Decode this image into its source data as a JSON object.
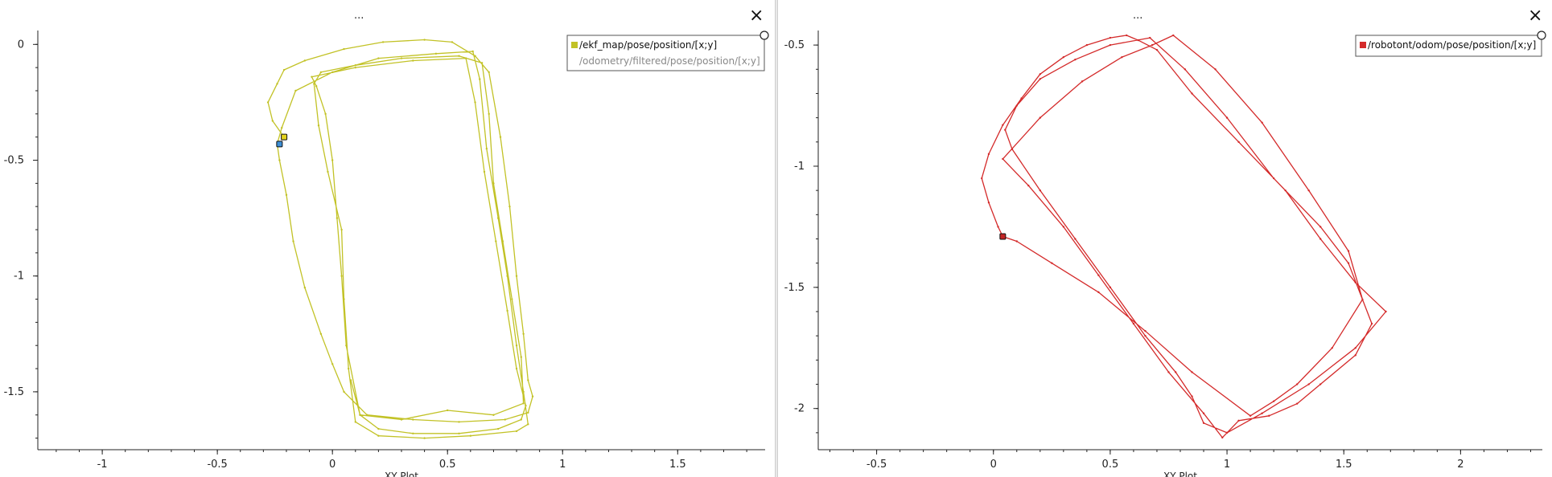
{
  "panels": [
    {
      "title": "...",
      "close_label": "×",
      "chart_data": {
        "type": "line",
        "title": "",
        "xlabel": "XY Plot",
        "ylabel": "",
        "xlim": [
          -1.28,
          1.88
        ],
        "ylim": [
          -1.75,
          0.06
        ],
        "xticks": [
          -1,
          -0.5,
          0,
          0.5,
          1,
          1.5
        ],
        "xtick_labels": [
          "-1",
          "-0.5",
          "0",
          "0.5",
          "1",
          "1.5"
        ],
        "yticks": [
          0,
          -0.5,
          -1,
          -1.5
        ],
        "ytick_labels": [
          "0",
          "-0.5",
          "-1",
          "-1.5"
        ],
        "grid": false,
        "legend_position": "top-right",
        "series": [
          {
            "name": "/ekf_map/pose/position/[x;y]",
            "color": "#c2c226",
            "visible": true,
            "marker": {
              "x": -0.21,
              "y": -0.4,
              "color": "#e3d21f"
            },
            "x": [
              -0.21,
              -0.26,
              -0.28,
              -0.24,
              -0.21,
              -0.12,
              0.05,
              0.22,
              0.4,
              0.52,
              0.62,
              0.68,
              0.73,
              0.77,
              0.8,
              0.83,
              0.85,
              0.87,
              0.85,
              0.75,
              0.55,
              0.35,
              0.15,
              0.05,
              0.0,
              -0.05,
              -0.12,
              -0.17,
              -0.2,
              -0.23,
              -0.24,
              -0.22,
              -0.16,
              0.0,
              0.2,
              0.45,
              0.61,
              0.64,
              0.67,
              0.72,
              0.76,
              0.8,
              0.83,
              0.85,
              0.8,
              0.6,
              0.4,
              0.2,
              0.1,
              0.07,
              0.05,
              0.04,
              -0.02,
              -0.06,
              -0.08,
              -0.05,
              0.1,
              0.3,
              0.55,
              0.65,
              0.68,
              0.7,
              0.74,
              0.78,
              0.82,
              0.83,
              0.7,
              0.5,
              0.3,
              0.12,
              0.06,
              0.04,
              0.02,
              0.0,
              -0.03,
              -0.07,
              -0.09,
              0.1,
              0.35,
              0.58,
              0.62,
              0.66,
              0.71,
              0.76,
              0.8,
              0.84,
              0.82,
              0.72,
              0.55,
              0.35,
              0.2,
              0.12,
              0.08
            ],
            "y": [
              -0.4,
              -0.33,
              -0.25,
              -0.17,
              -0.11,
              -0.07,
              -0.02,
              0.01,
              0.02,
              0.01,
              -0.05,
              -0.12,
              -0.4,
              -0.7,
              -1.0,
              -1.25,
              -1.45,
              -1.52,
              -1.59,
              -1.62,
              -1.63,
              -1.62,
              -1.6,
              -1.5,
              -1.38,
              -1.25,
              -1.05,
              -0.85,
              -0.65,
              -0.5,
              -0.43,
              -0.36,
              -0.2,
              -0.12,
              -0.06,
              -0.04,
              -0.03,
              -0.15,
              -0.45,
              -0.75,
              -1.0,
              -1.3,
              -1.5,
              -1.64,
              -1.67,
              -1.69,
              -1.7,
              -1.69,
              -1.63,
              -1.4,
              -1.1,
              -0.8,
              -0.55,
              -0.35,
              -0.17,
              -0.12,
              -0.09,
              -0.06,
              -0.05,
              -0.08,
              -0.3,
              -0.6,
              -0.85,
              -1.1,
              -1.35,
              -1.55,
              -1.6,
              -1.58,
              -1.62,
              -1.6,
              -1.3,
              -1.0,
              -0.75,
              -0.5,
              -0.3,
              -0.18,
              -0.14,
              -0.1,
              -0.07,
              -0.06,
              -0.25,
              -0.55,
              -0.85,
              -1.15,
              -1.4,
              -1.56,
              -1.62,
              -1.66,
              -1.68,
              -1.68,
              -1.66,
              -1.6,
              -1.45
            ]
          },
          {
            "name": "/odometry/filtered/pose/position/[x;y]",
            "color": "#4a90d9",
            "visible": false,
            "marker": {
              "x": -0.23,
              "y": -0.43,
              "color": "#3d8fd6"
            },
            "x": [],
            "y": []
          }
        ]
      }
    },
    {
      "title": "...",
      "close_label": "×",
      "chart_data": {
        "type": "line",
        "title": "",
        "xlabel": "XY Plot",
        "ylabel": "",
        "xlim": [
          -0.75,
          2.35
        ],
        "ylim": [
          -2.17,
          -0.44
        ],
        "xticks": [
          -0.5,
          0,
          0.5,
          1,
          1.5,
          2
        ],
        "xtick_labels": [
          "-0.5",
          "0",
          "0.5",
          "1",
          "1.5",
          "2"
        ],
        "yticks": [
          -0.5,
          -1,
          -1.5,
          -2
        ],
        "ytick_labels": [
          "-0.5",
          "-1",
          "-1.5",
          "-2"
        ],
        "grid": false,
        "legend_position": "top-right",
        "series": [
          {
            "name": "/robotont/odom/pose/position/[x;y]",
            "color": "#d42a2a",
            "visible": true,
            "marker": {
              "x": 0.04,
              "y": -1.29,
              "color": "#c42424"
            },
            "x": [
              0.04,
              0.02,
              -0.02,
              -0.05,
              -0.02,
              0.04,
              0.12,
              0.2,
              0.3,
              0.4,
              0.5,
              0.57,
              0.62,
              0.7,
              0.85,
              1.05,
              1.25,
              1.4,
              1.55,
              1.68,
              1.55,
              1.35,
              1.15,
              1.0,
              0.9,
              0.85,
              0.78,
              0.65,
              0.5,
              0.35,
              0.2,
              0.08,
              0.05,
              0.1,
              0.2,
              0.35,
              0.5,
              0.67,
              0.82,
              1.0,
              1.2,
              1.4,
              1.52,
              1.62,
              1.55,
              1.4,
              1.3,
              1.18,
              1.05,
              0.98,
              0.9,
              0.75,
              0.6,
              0.45,
              0.3,
              0.15,
              0.04,
              0.2,
              0.38,
              0.55,
              0.68,
              0.77,
              0.95,
              1.15,
              1.35,
              1.52,
              1.58,
              1.45,
              1.3,
              1.2,
              1.1,
              0.85,
              0.65,
              0.45,
              0.25,
              0.1,
              0.04
            ],
            "y": [
              -1.29,
              -1.25,
              -1.15,
              -1.05,
              -0.95,
              -0.83,
              -0.72,
              -0.62,
              -0.55,
              -0.5,
              -0.47,
              -0.46,
              -0.48,
              -0.52,
              -0.7,
              -0.9,
              -1.1,
              -1.3,
              -1.48,
              -1.6,
              -1.75,
              -1.9,
              -2.02,
              -2.1,
              -2.06,
              -1.95,
              -1.85,
              -1.7,
              -1.5,
              -1.3,
              -1.1,
              -0.93,
              -0.85,
              -0.75,
              -0.64,
              -0.56,
              -0.5,
              -0.47,
              -0.6,
              -0.8,
              -1.05,
              -1.25,
              -1.4,
              -1.65,
              -1.78,
              -1.9,
              -1.98,
              -2.03,
              -2.05,
              -2.12,
              -2.02,
              -1.85,
              -1.65,
              -1.45,
              -1.25,
              -1.08,
              -0.97,
              -0.8,
              -0.65,
              -0.55,
              -0.5,
              -0.46,
              -0.6,
              -0.82,
              -1.1,
              -1.35,
              -1.55,
              -1.75,
              -1.9,
              -1.97,
              -2.03,
              -1.85,
              -1.68,
              -1.52,
              -1.4,
              -1.31,
              -1.29
            ]
          }
        ]
      }
    }
  ]
}
